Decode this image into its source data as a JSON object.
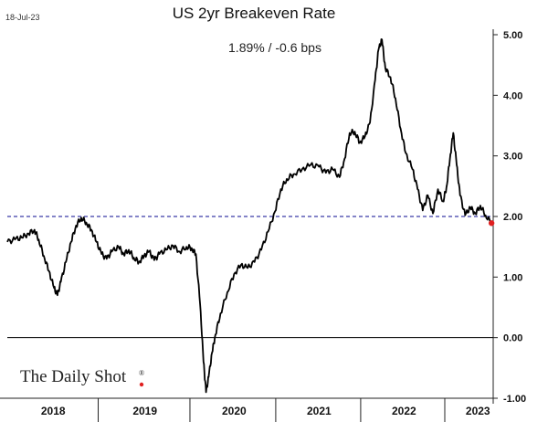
{
  "chart_data": {
    "type": "line",
    "date_stamp": "18-Jul-23",
    "title": "US 2yr Breakeven Rate",
    "annotation": "1.89%  /  -0.6 bps",
    "ylim": [
      -1.0,
      5.0
    ],
    "yticks": [
      "5.00",
      "4.00",
      "3.00",
      "2.00",
      "1.00",
      "0.00",
      "-1.00"
    ],
    "ytick_values": [
      5,
      4,
      3,
      2,
      1,
      0,
      -1
    ],
    "xlim": [
      2017.83,
      2023.55
    ],
    "x_year_labels": [
      "2018",
      "2019",
      "2020",
      "2021",
      "2022",
      "2023"
    ],
    "x_year_centers": [
      2018.37,
      2019.45,
      2020.5,
      2021.5,
      2022.5,
      2023.37
    ],
    "x_year_boundaries": [
      2018.9,
      2019.98,
      2020.99,
      2021.99,
      2022.98
    ],
    "reference_line": {
      "value": 2.0,
      "color": "#3a3aa8",
      "style": "dashed"
    },
    "zero_line": {
      "value": 0.0,
      "color": "#000000"
    },
    "last_point": {
      "x": 2023.53,
      "y": 1.89,
      "color": "#e02020"
    },
    "grid": false,
    "series": [
      {
        "color": "#000000",
        "points": [
          [
            2017.83,
            1.58
          ],
          [
            2017.92,
            1.62
          ],
          [
            2018.0,
            1.65
          ],
          [
            2018.08,
            1.72
          ],
          [
            2018.15,
            1.78
          ],
          [
            2018.2,
            1.62
          ],
          [
            2018.26,
            1.35
          ],
          [
            2018.32,
            1.1
          ],
          [
            2018.38,
            0.82
          ],
          [
            2018.42,
            0.7
          ],
          [
            2018.46,
            0.92
          ],
          [
            2018.52,
            1.25
          ],
          [
            2018.58,
            1.58
          ],
          [
            2018.64,
            1.85
          ],
          [
            2018.7,
            1.98
          ],
          [
            2018.76,
            1.9
          ],
          [
            2018.82,
            1.78
          ],
          [
            2018.88,
            1.58
          ],
          [
            2018.94,
            1.38
          ],
          [
            2019.0,
            1.3
          ],
          [
            2019.06,
            1.42
          ],
          [
            2019.14,
            1.5
          ],
          [
            2019.2,
            1.38
          ],
          [
            2019.26,
            1.45
          ],
          [
            2019.32,
            1.32
          ],
          [
            2019.38,
            1.25
          ],
          [
            2019.44,
            1.35
          ],
          [
            2019.5,
            1.42
          ],
          [
            2019.56,
            1.28
          ],
          [
            2019.62,
            1.38
          ],
          [
            2019.7,
            1.45
          ],
          [
            2019.78,
            1.52
          ],
          [
            2019.86,
            1.42
          ],
          [
            2019.94,
            1.5
          ],
          [
            2020.0,
            1.48
          ],
          [
            2020.05,
            1.38
          ],
          [
            2020.1,
            0.55
          ],
          [
            2020.14,
            -0.4
          ],
          [
            2020.17,
            -0.9
          ],
          [
            2020.2,
            -0.65
          ],
          [
            2020.24,
            -0.25
          ],
          [
            2020.28,
            0.05
          ],
          [
            2020.34,
            0.4
          ],
          [
            2020.42,
            0.75
          ],
          [
            2020.5,
            1.05
          ],
          [
            2020.58,
            1.2
          ],
          [
            2020.66,
            1.15
          ],
          [
            2020.74,
            1.25
          ],
          [
            2020.82,
            1.45
          ],
          [
            2020.9,
            1.75
          ],
          [
            2020.98,
            2.08
          ],
          [
            2021.05,
            2.45
          ],
          [
            2021.12,
            2.62
          ],
          [
            2021.2,
            2.7
          ],
          [
            2021.3,
            2.78
          ],
          [
            2021.4,
            2.85
          ],
          [
            2021.5,
            2.82
          ],
          [
            2021.58,
            2.72
          ],
          [
            2021.66,
            2.78
          ],
          [
            2021.74,
            2.65
          ],
          [
            2021.8,
            2.95
          ],
          [
            2021.86,
            3.38
          ],
          [
            2021.92,
            3.4
          ],
          [
            2021.98,
            3.22
          ],
          [
            2022.04,
            3.32
          ],
          [
            2022.1,
            3.55
          ],
          [
            2022.16,
            4.25
          ],
          [
            2022.2,
            4.75
          ],
          [
            2022.24,
            4.92
          ],
          [
            2022.28,
            4.45
          ],
          [
            2022.34,
            4.3
          ],
          [
            2022.4,
            3.95
          ],
          [
            2022.46,
            3.45
          ],
          [
            2022.52,
            3.05
          ],
          [
            2022.6,
            2.78
          ],
          [
            2022.66,
            2.45
          ],
          [
            2022.72,
            2.1
          ],
          [
            2022.78,
            2.35
          ],
          [
            2022.84,
            2.05
          ],
          [
            2022.9,
            2.45
          ],
          [
            2022.96,
            2.25
          ],
          [
            2023.0,
            2.48
          ],
          [
            2023.04,
            2.95
          ],
          [
            2023.08,
            3.38
          ],
          [
            2023.12,
            2.85
          ],
          [
            2023.16,
            2.35
          ],
          [
            2023.22,
            2.02
          ],
          [
            2023.28,
            2.15
          ],
          [
            2023.34,
            2.05
          ],
          [
            2023.4,
            2.18
          ],
          [
            2023.46,
            2.02
          ],
          [
            2023.53,
            1.89
          ]
        ]
      }
    ]
  },
  "branding": {
    "logo_text": "The Daily Shot",
    "logo_mark": "®"
  }
}
